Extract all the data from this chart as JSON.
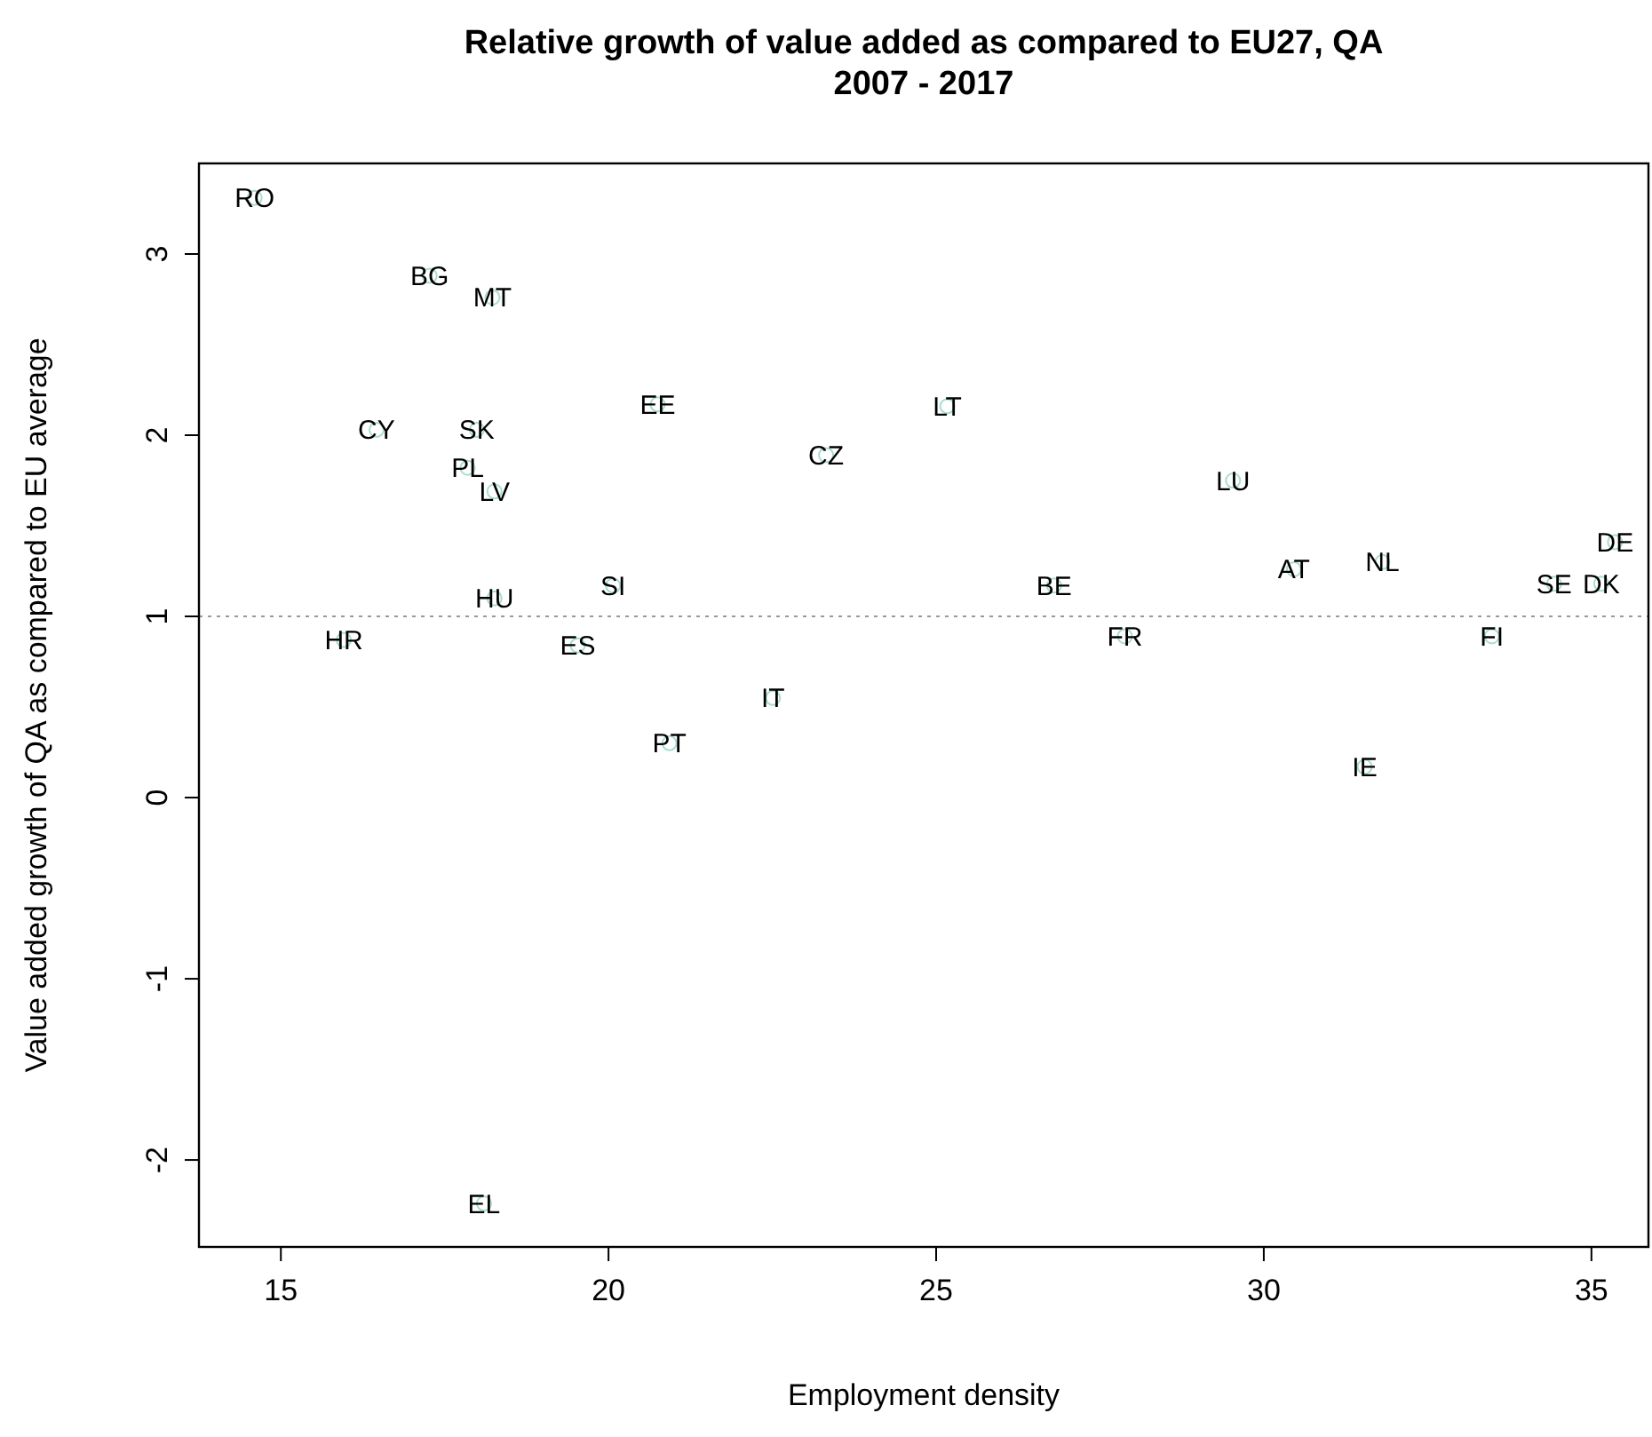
{
  "chart_data": {
    "type": "scatter",
    "title": "Relative growth of value added as compared to EU27, QA\n2007 - 2017",
    "xlabel": "Employment density",
    "ylabel": "Value added growth of QA as compared to EU average",
    "x": [
      14.6,
      17.27,
      18.23,
      20.75,
      16.46,
      17.99,
      17.85,
      18.26,
      23.32,
      18.26,
      20.07,
      15.96,
      19.53,
      22.51,
      20.93,
      25.17,
      29.53,
      35.36,
      30.46,
      31.81,
      34.43,
      35.15,
      26.8,
      27.88,
      33.48,
      31.54,
      18.1
    ],
    "series": [
      {
        "color": "#a8dcd1",
        "values": [
          3.31,
          2.88,
          2.76,
          2.17,
          2.03,
          2.03,
          1.82,
          1.69,
          1.89,
          1.1,
          1.17,
          0.87,
          0.84,
          0.55,
          0.3,
          2.16,
          1.75,
          1.41,
          1.26,
          1.3,
          1.18,
          1.18,
          1.17,
          0.89,
          0.89,
          0.17,
          -2.24
        ]
      }
    ],
    "annotations": [
      {
        "text": "RO",
        "x": 14.6,
        "y": 3.31
      },
      {
        "text": "BG",
        "x": 17.27,
        "y": 2.88
      },
      {
        "text": "MT",
        "x": 18.23,
        "y": 2.76
      },
      {
        "text": "EE",
        "x": 20.75,
        "y": 2.17
      },
      {
        "text": "CY",
        "x": 16.46,
        "y": 2.03
      },
      {
        "text": "SK",
        "x": 17.99,
        "y": 2.03
      },
      {
        "text": "PL",
        "x": 17.85,
        "y": 1.82
      },
      {
        "text": "LV",
        "x": 18.26,
        "y": 1.69
      },
      {
        "text": "CZ",
        "x": 23.32,
        "y": 1.89
      },
      {
        "text": "HU",
        "x": 18.26,
        "y": 1.1
      },
      {
        "text": "SI",
        "x": 20.07,
        "y": 1.17
      },
      {
        "text": "HR",
        "x": 15.96,
        "y": 0.87
      },
      {
        "text": "ES",
        "x": 19.53,
        "y": 0.84
      },
      {
        "text": "IT",
        "x": 22.51,
        "y": 0.55
      },
      {
        "text": "PT",
        "x": 20.93,
        "y": 0.3
      },
      {
        "text": "LT",
        "x": 25.17,
        "y": 2.16
      },
      {
        "text": "LU",
        "x": 29.53,
        "y": 1.75
      },
      {
        "text": "DE",
        "x": 35.36,
        "y": 1.41
      },
      {
        "text": "AT",
        "x": 30.46,
        "y": 1.26
      },
      {
        "text": "NL",
        "x": 31.81,
        "y": 1.3
      },
      {
        "text": "SE",
        "x": 34.43,
        "y": 1.18
      },
      {
        "text": "DK",
        "x": 35.15,
        "y": 1.18
      },
      {
        "text": "BE",
        "x": 26.8,
        "y": 1.17
      },
      {
        "text": "FR",
        "x": 27.88,
        "y": 0.89
      },
      {
        "text": "FI",
        "x": 33.48,
        "y": 0.89
      },
      {
        "text": "IE",
        "x": 31.54,
        "y": 0.17
      },
      {
        "text": "EL",
        "x": 18.1,
        "y": -2.24
      }
    ],
    "ref_lines": [
      {
        "axis": "y",
        "value": 1,
        "color": "#999999",
        "line_style": "dotted"
      }
    ],
    "xlim": [
      13.75,
      35.87
    ],
    "ylim": [
      -2.48,
      3.5
    ],
    "xticks": [
      15,
      20,
      25,
      30,
      35
    ],
    "yticks": [
      -2,
      -1,
      0,
      1,
      2,
      3
    ],
    "marker": "circle",
    "grid": false
  }
}
